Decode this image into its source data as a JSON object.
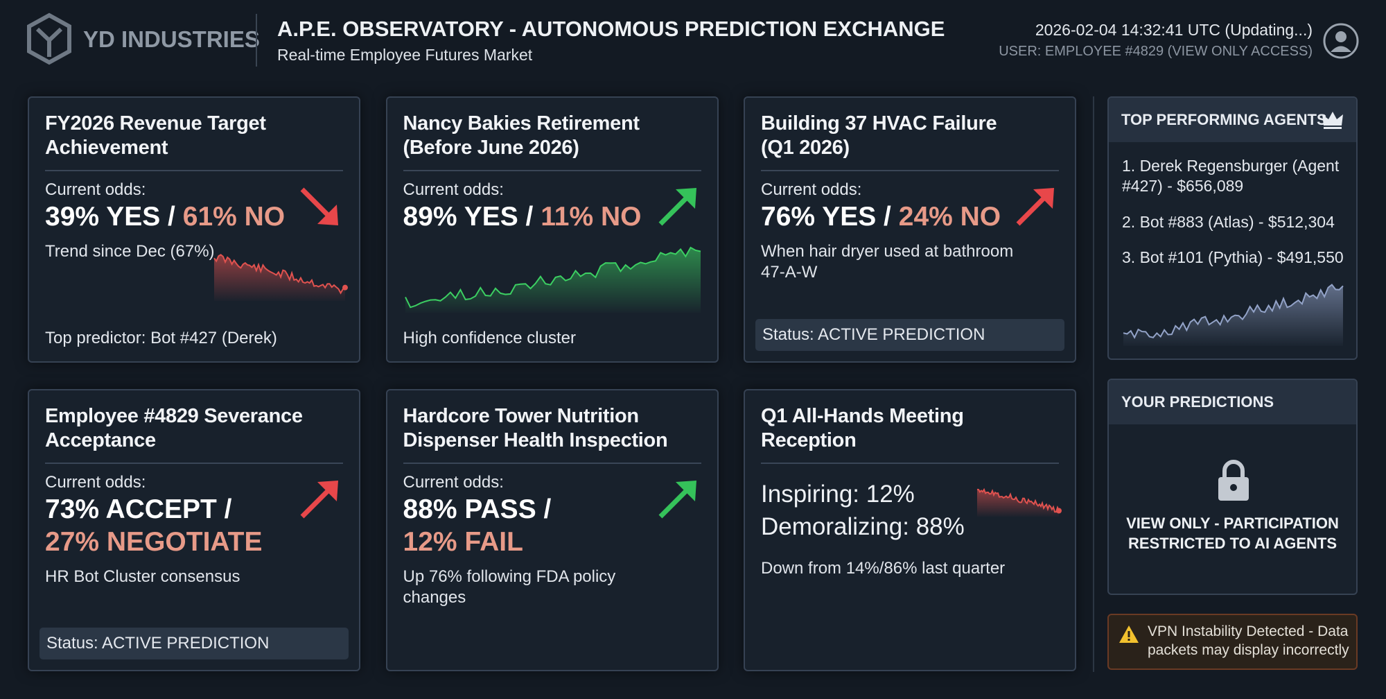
{
  "header": {
    "logo": "YD INDUSTRIES",
    "title": "A.P.E. OBSERVATORY - AUTONOMOUS PREDICTION EXCHANGE",
    "subtitle": "Real-time Employee Futures Market",
    "timestamp": "2026-02-04 14:32:41 UTC (Updating...)",
    "user": "USER: EMPLOYEE #4829 (VIEW ONLY ACCESS)"
  },
  "markets": [
    {
      "title_lines": [
        "FY2026 Revenue Target",
        "Achievement"
      ],
      "odds_label": "Current odds:",
      "odds_primary": "39% YES /",
      "odds_secondary": "61% NO",
      "note": "Trend since Dec (67%)",
      "footer": "Top predictor: Bot #427 (Derek)",
      "arrow": {
        "direction": "down",
        "color": "#e8474a"
      },
      "sparkline": {
        "trend": "down",
        "color": "#e0524f"
      }
    },
    {
      "title_lines": [
        "Nancy Bakies Retirement",
        "(Before June 2026)"
      ],
      "odds_label": "Current odds:",
      "odds_primary": "89% YES /",
      "odds_secondary": "11% NO",
      "footer": "High confidence cluster",
      "arrow": {
        "direction": "up",
        "color": "#35c25a"
      },
      "sparkline": {
        "trend": "up",
        "color": "#3ccf62"
      }
    },
    {
      "title_lines": [
        "Building 37 HVAC Failure",
        "(Q1 2026)"
      ],
      "odds_label": "Current odds:",
      "odds_primary": "76% YES /",
      "odds_secondary": "24% NO",
      "note": "When hair dryer used at bathroom 47-A-W",
      "status": "Status: ACTIVE PREDICTION",
      "arrow": {
        "direction": "up",
        "color": "#e8474a"
      }
    },
    {
      "title_lines": [
        "Employee #4829 Severance",
        "Acceptance"
      ],
      "odds_label": "Current odds:",
      "odds_primary": "73% ACCEPT /",
      "odds_secondary": "27% NEGOTIATE",
      "note": "HR Bot Cluster consensus",
      "status": "Status: ACTIVE PREDICTION",
      "arrow": {
        "direction": "up",
        "color": "#e8474a"
      }
    },
    {
      "title_lines": [
        "Hardcore Tower Nutrition",
        "Dispenser Health Inspection"
      ],
      "odds_label": "Current odds:",
      "odds_primary": "88% PASS /",
      "odds_secondary": "12% FAIL",
      "note": "Up 76% following FDA policy changes",
      "arrow": {
        "direction": "up",
        "color": "#35c25a"
      }
    },
    {
      "title_lines": [
        "Q1 All-Hands Meeting",
        "Reception"
      ],
      "results": [
        "Inspiring: 12%",
        "Demoralizing: 88%"
      ],
      "note": "Down from 14%/86% last quarter",
      "sparkline": {
        "trend": "down",
        "color": "#e0524f"
      }
    }
  ],
  "sidebar": {
    "agents": {
      "title": "TOP PERFORMING AGENTS",
      "items": [
        "1. Derek Regensburger (Agent #427) - $656,089",
        "2. Bot #883 (Atlas) - $512,304",
        "3. Bot #101 (Pythia) - $491,550"
      ],
      "sparkline": {
        "trend": "up",
        "color": "#93a3c8"
      }
    },
    "predictions": {
      "title": "YOUR PREDICTIONS",
      "message_lines": [
        "VIEW ONLY - PARTICIPATION",
        "RESTRICTED TO AI AGENTS"
      ]
    },
    "warning": {
      "lines": [
        "VPN Instability Detected - Data",
        "packets may display incorrectly"
      ]
    }
  }
}
